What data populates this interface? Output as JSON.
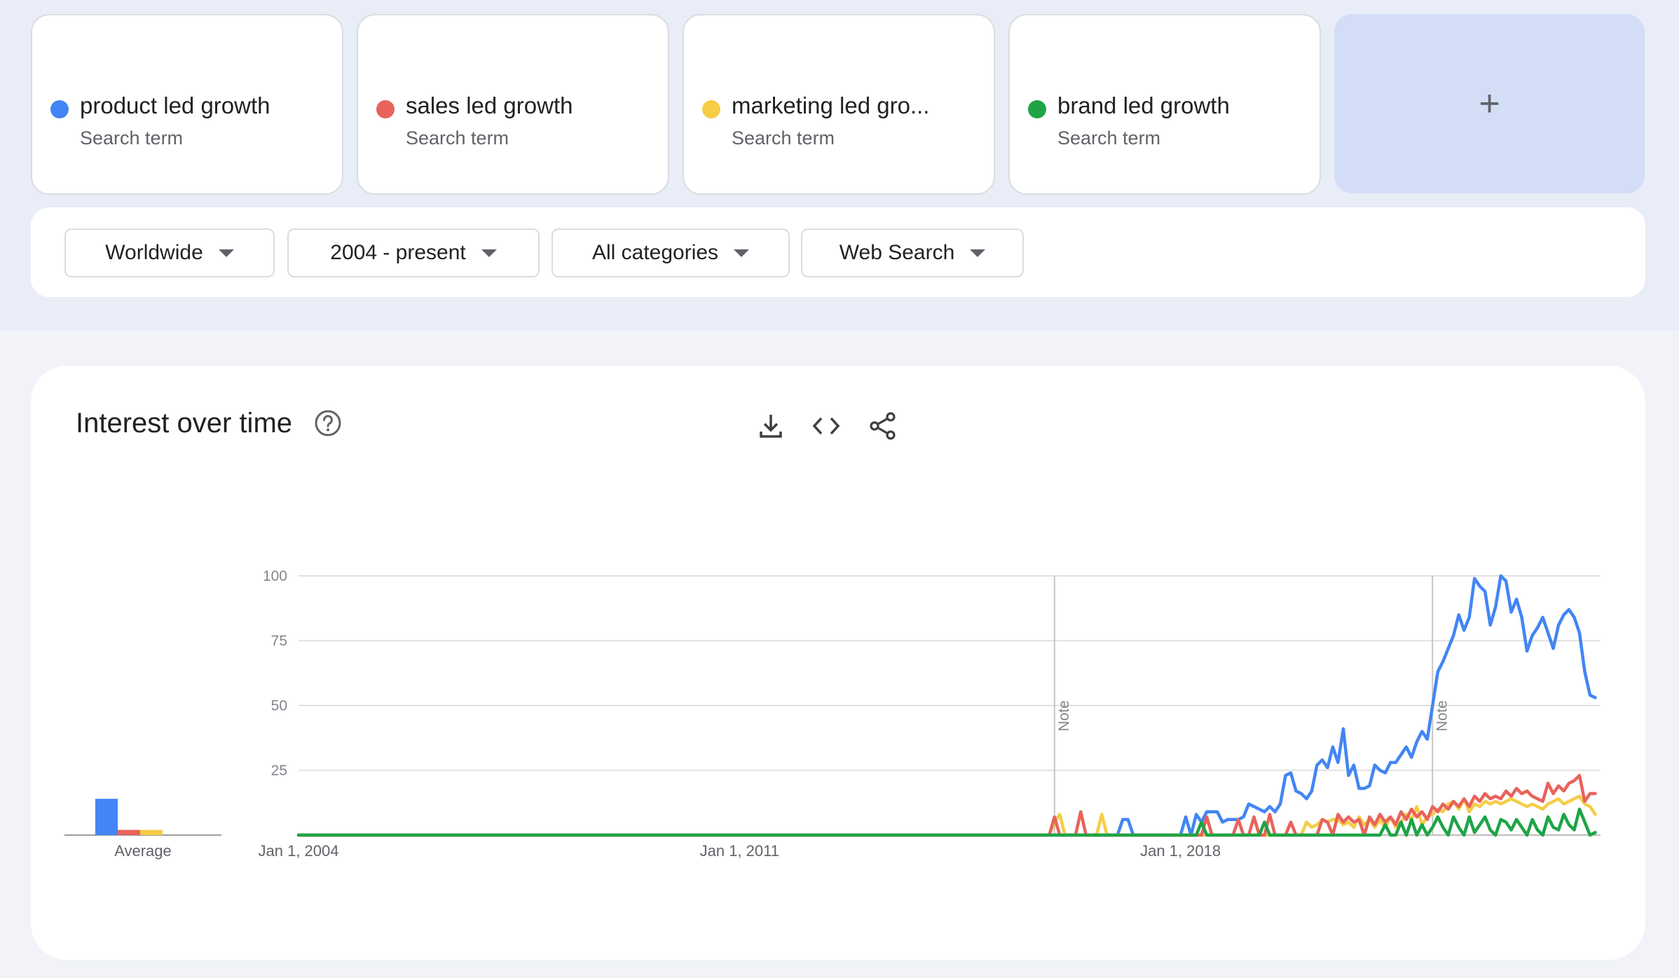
{
  "terms": [
    {
      "name": "product led growth",
      "sub": "Search term",
      "color": "#4285f4"
    },
    {
      "name": "sales led growth",
      "sub": "Search term",
      "color": "#e8635b"
    },
    {
      "name": "marketing led gro...",
      "sub": "Search term",
      "color": "#f5cd47"
    },
    {
      "name": "brand led growth",
      "sub": "Search term",
      "color": "#1ea446"
    }
  ],
  "add_label": "+",
  "filters": {
    "region": "Worldwide",
    "time": "2004 - present",
    "category": "All categories",
    "search_type": "Web Search"
  },
  "panel": {
    "title": "Interest over time",
    "average_label": "Average",
    "icons": [
      "help-icon",
      "download-icon",
      "embed-icon",
      "share-icon"
    ]
  },
  "chart_data": {
    "type": "line",
    "x_labels": [
      "Jan 1, 2004",
      "Jan 1, 2011",
      "Jan 1, 2018"
    ],
    "x_range": [
      "2004-01",
      "2024-09"
    ],
    "ylim": [
      0,
      100
    ],
    "y_ticks": [
      "100",
      "75",
      "50",
      "25"
    ],
    "notes": [
      {
        "date": "2016-01",
        "label": "Note"
      },
      {
        "date": "2022-01",
        "label": "Note"
      }
    ],
    "averages": [
      14,
      2,
      2,
      0
    ],
    "series": [
      {
        "name": "product led growth",
        "color": "#4285f4",
        "points": [
          [
            "2004-01",
            0
          ],
          [
            "2017-01",
            0
          ],
          [
            "2017-02",
            6
          ],
          [
            "2017-03",
            6
          ],
          [
            "2017-04",
            0
          ],
          [
            "2017-05",
            0
          ],
          [
            "2018-01",
            0
          ],
          [
            "2018-02",
            7
          ],
          [
            "2018-03",
            0
          ],
          [
            "2018-04",
            8
          ],
          [
            "2018-05",
            5
          ],
          [
            "2018-06",
            9
          ],
          [
            "2018-07",
            9
          ],
          [
            "2018-08",
            9
          ],
          [
            "2018-09",
            5
          ],
          [
            "2018-10",
            6
          ],
          [
            "2018-11",
            6
          ],
          [
            "2018-12",
            6
          ],
          [
            "2019-01",
            7
          ],
          [
            "2019-02",
            12
          ],
          [
            "2019-03",
            11
          ],
          [
            "2019-04",
            10
          ],
          [
            "2019-05",
            9
          ],
          [
            "2019-06",
            11
          ],
          [
            "2019-07",
            9
          ],
          [
            "2019-08",
            12
          ],
          [
            "2019-09",
            23
          ],
          [
            "2019-10",
            24
          ],
          [
            "2019-11",
            17
          ],
          [
            "2019-12",
            16
          ],
          [
            "2020-01",
            14
          ],
          [
            "2020-02",
            17
          ],
          [
            "2020-03",
            27
          ],
          [
            "2020-04",
            29
          ],
          [
            "2020-05",
            26
          ],
          [
            "2020-06",
            34
          ],
          [
            "2020-07",
            28
          ],
          [
            "2020-08",
            41
          ],
          [
            "2020-09",
            23
          ],
          [
            "2020-10",
            27
          ],
          [
            "2020-11",
            18
          ],
          [
            "2020-12",
            18
          ],
          [
            "2021-01",
            19
          ],
          [
            "2021-02",
            27
          ],
          [
            "2021-03",
            25
          ],
          [
            "2021-04",
            24
          ],
          [
            "2021-05",
            28
          ],
          [
            "2021-06",
            28
          ],
          [
            "2021-07",
            31
          ],
          [
            "2021-08",
            34
          ],
          [
            "2021-09",
            30
          ],
          [
            "2021-10",
            36
          ],
          [
            "2021-11",
            40
          ],
          [
            "2021-12",
            37
          ],
          [
            "2022-01",
            50
          ],
          [
            "2022-02",
            63
          ],
          [
            "2022-03",
            67
          ],
          [
            "2022-04",
            72
          ],
          [
            "2022-05",
            77
          ],
          [
            "2022-06",
            85
          ],
          [
            "2022-07",
            79
          ],
          [
            "2022-08",
            84
          ],
          [
            "2022-09",
            99
          ],
          [
            "2022-10",
            96
          ],
          [
            "2022-11",
            94
          ],
          [
            "2022-12",
            81
          ],
          [
            "2023-01",
            88
          ],
          [
            "2023-02",
            100
          ],
          [
            "2023-03",
            98
          ],
          [
            "2023-04",
            86
          ],
          [
            "2023-05",
            91
          ],
          [
            "2023-06",
            84
          ],
          [
            "2023-07",
            71
          ],
          [
            "2023-08",
            77
          ],
          [
            "2023-09",
            80
          ],
          [
            "2023-10",
            84
          ],
          [
            "2023-11",
            78
          ],
          [
            "2023-12",
            72
          ],
          [
            "2024-01",
            81
          ],
          [
            "2024-02",
            85
          ],
          [
            "2024-03",
            87
          ],
          [
            "2024-04",
            84
          ],
          [
            "2024-05",
            78
          ],
          [
            "2024-06",
            63
          ],
          [
            "2024-07",
            54
          ],
          [
            "2024-08",
            53
          ]
        ]
      },
      {
        "name": "sales led growth",
        "color": "#e8635b",
        "points": [
          [
            "2004-01",
            0
          ],
          [
            "2015-12",
            0
          ],
          [
            "2016-01",
            7
          ],
          [
            "2016-02",
            0
          ],
          [
            "2016-03",
            0
          ],
          [
            "2016-05",
            0
          ],
          [
            "2016-06",
            9
          ],
          [
            "2016-07",
            0
          ],
          [
            "2018-05",
            0
          ],
          [
            "2018-06",
            7
          ],
          [
            "2018-07",
            0
          ],
          [
            "2018-11",
            0
          ],
          [
            "2018-12",
            6
          ],
          [
            "2019-01",
            0
          ],
          [
            "2019-02",
            0
          ],
          [
            "2019-03",
            7
          ],
          [
            "2019-04",
            0
          ],
          [
            "2019-05",
            0
          ],
          [
            "2019-06",
            8
          ],
          [
            "2019-07",
            0
          ],
          [
            "2019-09",
            0
          ],
          [
            "2019-10",
            5
          ],
          [
            "2019-11",
            0
          ],
          [
            "2020-03",
            0
          ],
          [
            "2020-04",
            6
          ],
          [
            "2020-05",
            5
          ],
          [
            "2020-06",
            0
          ],
          [
            "2020-07",
            8
          ],
          [
            "2020-08",
            5
          ],
          [
            "2020-09",
            7
          ],
          [
            "2020-10",
            5
          ],
          [
            "2020-11",
            6
          ],
          [
            "2020-12",
            0
          ],
          [
            "2021-01",
            7
          ],
          [
            "2021-02",
            4
          ],
          [
            "2021-03",
            8
          ],
          [
            "2021-04",
            5
          ],
          [
            "2021-05",
            7
          ],
          [
            "2021-06",
            4
          ],
          [
            "2021-07",
            9
          ],
          [
            "2021-08",
            6
          ],
          [
            "2021-09",
            10
          ],
          [
            "2021-10",
            7
          ],
          [
            "2021-11",
            9
          ],
          [
            "2021-12",
            6
          ],
          [
            "2022-01",
            11
          ],
          [
            "2022-02",
            9
          ],
          [
            "2022-03",
            12
          ],
          [
            "2022-04",
            10
          ],
          [
            "2022-05",
            13
          ],
          [
            "2022-06",
            11
          ],
          [
            "2022-07",
            14
          ],
          [
            "2022-08",
            11
          ],
          [
            "2022-09",
            15
          ],
          [
            "2022-10",
            13
          ],
          [
            "2022-11",
            16
          ],
          [
            "2022-12",
            14
          ],
          [
            "2023-01",
            15
          ],
          [
            "2023-02",
            14
          ],
          [
            "2023-03",
            17
          ],
          [
            "2023-04",
            15
          ],
          [
            "2023-05",
            18
          ],
          [
            "2023-06",
            16
          ],
          [
            "2023-07",
            17
          ],
          [
            "2023-08",
            15
          ],
          [
            "2023-09",
            14
          ],
          [
            "2023-10",
            13
          ],
          [
            "2023-11",
            20
          ],
          [
            "2023-12",
            16
          ],
          [
            "2024-01",
            19
          ],
          [
            "2024-02",
            17
          ],
          [
            "2024-03",
            20
          ],
          [
            "2024-04",
            21
          ],
          [
            "2024-05",
            23
          ],
          [
            "2024-06",
            13
          ],
          [
            "2024-07",
            16
          ],
          [
            "2024-08",
            16
          ]
        ]
      },
      {
        "name": "marketing led gro...",
        "color": "#f5cd47",
        "points": [
          [
            "2004-01",
            0
          ],
          [
            "2015-12",
            0
          ],
          [
            "2016-01",
            5
          ],
          [
            "2016-02",
            8
          ],
          [
            "2016-03",
            0
          ],
          [
            "2016-09",
            0
          ],
          [
            "2016-10",
            8
          ],
          [
            "2016-11",
            0
          ],
          [
            "2019-12",
            0
          ],
          [
            "2020-01",
            5
          ],
          [
            "2020-02",
            3
          ],
          [
            "2020-03",
            4
          ],
          [
            "2020-04",
            6
          ],
          [
            "2020-05",
            5
          ],
          [
            "2020-06",
            6
          ],
          [
            "2020-07",
            6
          ],
          [
            "2020-08",
            4
          ],
          [
            "2020-09",
            5
          ],
          [
            "2020-10",
            3
          ],
          [
            "2020-11",
            7
          ],
          [
            "2020-12",
            4
          ],
          [
            "2021-01",
            6
          ],
          [
            "2021-02",
            3
          ],
          [
            "2021-03",
            6
          ],
          [
            "2021-04",
            3
          ],
          [
            "2021-05",
            7
          ],
          [
            "2021-06",
            3
          ],
          [
            "2021-07",
            5
          ],
          [
            "2021-08",
            8
          ],
          [
            "2021-09",
            6
          ],
          [
            "2021-10",
            11
          ],
          [
            "2021-11",
            4
          ],
          [
            "2021-12",
            7
          ],
          [
            "2022-01",
            8
          ],
          [
            "2022-02",
            10
          ],
          [
            "2022-03",
            9
          ],
          [
            "2022-04",
            12
          ],
          [
            "2022-05",
            13
          ],
          [
            "2022-06",
            10
          ],
          [
            "2022-07",
            14
          ],
          [
            "2022-08",
            9
          ],
          [
            "2022-09",
            12
          ],
          [
            "2022-10",
            11
          ],
          [
            "2022-11",
            13
          ],
          [
            "2022-12",
            12
          ],
          [
            "2023-01",
            13
          ],
          [
            "2023-02",
            12
          ],
          [
            "2023-03",
            13
          ],
          [
            "2023-04",
            14
          ],
          [
            "2023-05",
            13
          ],
          [
            "2023-06",
            12
          ],
          [
            "2023-07",
            11
          ],
          [
            "2023-08",
            12
          ],
          [
            "2023-09",
            11
          ],
          [
            "2023-10",
            10
          ],
          [
            "2023-11",
            12
          ],
          [
            "2023-12",
            13
          ],
          [
            "2024-01",
            14
          ],
          [
            "2024-02",
            12
          ],
          [
            "2024-03",
            13
          ],
          [
            "2024-04",
            14
          ],
          [
            "2024-05",
            15
          ],
          [
            "2024-06",
            12
          ],
          [
            "2024-07",
            11
          ],
          [
            "2024-08",
            8
          ]
        ]
      },
      {
        "name": "brand led growth",
        "color": "#1ea446",
        "points": [
          [
            "2004-01",
            0
          ],
          [
            "2018-04",
            0
          ],
          [
            "2018-05",
            5
          ],
          [
            "2018-06",
            0
          ],
          [
            "2019-04",
            0
          ],
          [
            "2019-05",
            5
          ],
          [
            "2019-06",
            0
          ],
          [
            "2021-03",
            0
          ],
          [
            "2021-04",
            4
          ],
          [
            "2021-05",
            0
          ],
          [
            "2021-06",
            0
          ],
          [
            "2021-07",
            5
          ],
          [
            "2021-08",
            0
          ],
          [
            "2021-09",
            6
          ],
          [
            "2021-10",
            0
          ],
          [
            "2021-11",
            4
          ],
          [
            "2021-12",
            0
          ],
          [
            "2022-01",
            3
          ],
          [
            "2022-02",
            7
          ],
          [
            "2022-03",
            3
          ],
          [
            "2022-04",
            0
          ],
          [
            "2022-05",
            7
          ],
          [
            "2022-06",
            3
          ],
          [
            "2022-07",
            0
          ],
          [
            "2022-08",
            7
          ],
          [
            "2022-09",
            1
          ],
          [
            "2022-10",
            4
          ],
          [
            "2022-11",
            7
          ],
          [
            "2022-12",
            2
          ],
          [
            "2023-01",
            0
          ],
          [
            "2023-02",
            6
          ],
          [
            "2023-03",
            5
          ],
          [
            "2023-04",
            2
          ],
          [
            "2023-05",
            6
          ],
          [
            "2023-06",
            3
          ],
          [
            "2023-07",
            0
          ],
          [
            "2023-08",
            6
          ],
          [
            "2023-09",
            2
          ],
          [
            "2023-10",
            0
          ],
          [
            "2023-11",
            7
          ],
          [
            "2023-12",
            3
          ],
          [
            "2024-01",
            2
          ],
          [
            "2024-02",
            8
          ],
          [
            "2024-03",
            4
          ],
          [
            "2024-04",
            2
          ],
          [
            "2024-05",
            10
          ],
          [
            "2024-06",
            5
          ],
          [
            "2024-07",
            0
          ],
          [
            "2024-08",
            1
          ]
        ]
      }
    ]
  }
}
